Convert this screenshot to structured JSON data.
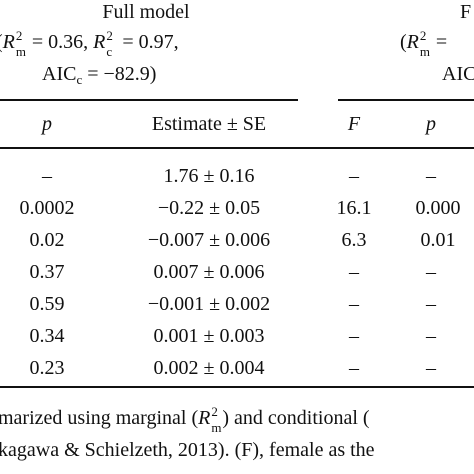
{
  "header": {
    "full_model_title": "Full model",
    "full_model_stats": {
      "open": "(",
      "r2m_value": "= 0.36,",
      "r2c_value": "= 0.97,",
      "aic": "AIC",
      "aic_sub": "c",
      "aic_value": "= −82.9)"
    },
    "right_title_partial": "F",
    "right_stats_partial": "(",
    "right_aic_partial": "AIC",
    "r_symbol": "R",
    "sup2": "2",
    "sub_m": "m",
    "sub_c": "c"
  },
  "columns": {
    "p": "p",
    "estimate_se": "Estimate ± SE",
    "F": "F",
    "p2": "p"
  },
  "rows": [
    {
      "p": "–",
      "est": "1.76 ± 0.16",
      "F": "–",
      "p2": "–"
    },
    {
      "p": "0.0002",
      "est": "−0.22 ± 0.05",
      "F": "16.1",
      "p2": "0.000"
    },
    {
      "p": "0.02",
      "est": "−0.007 ± 0.006",
      "F": "6.3",
      "p2": "0.01"
    },
    {
      "p": "0.37",
      "est": "0.007 ± 0.006",
      "F": "–",
      "p2": "–"
    },
    {
      "p": "0.59",
      "est": "−0.001 ± 0.002",
      "F": "–",
      "p2": "–"
    },
    {
      "p": "0.34",
      "est": "0.001 ± 0.003",
      "F": "–",
      "p2": "–"
    },
    {
      "p": "0.23",
      "est": "0.002 ± 0.004",
      "F": "–",
      "p2": "–"
    }
  ],
  "caption": {
    "line1_a": "marized using marginal (",
    "line1_b": ") and conditional (",
    "line2": "kagawa & Schielzeth, 2013). (F), female as the"
  }
}
